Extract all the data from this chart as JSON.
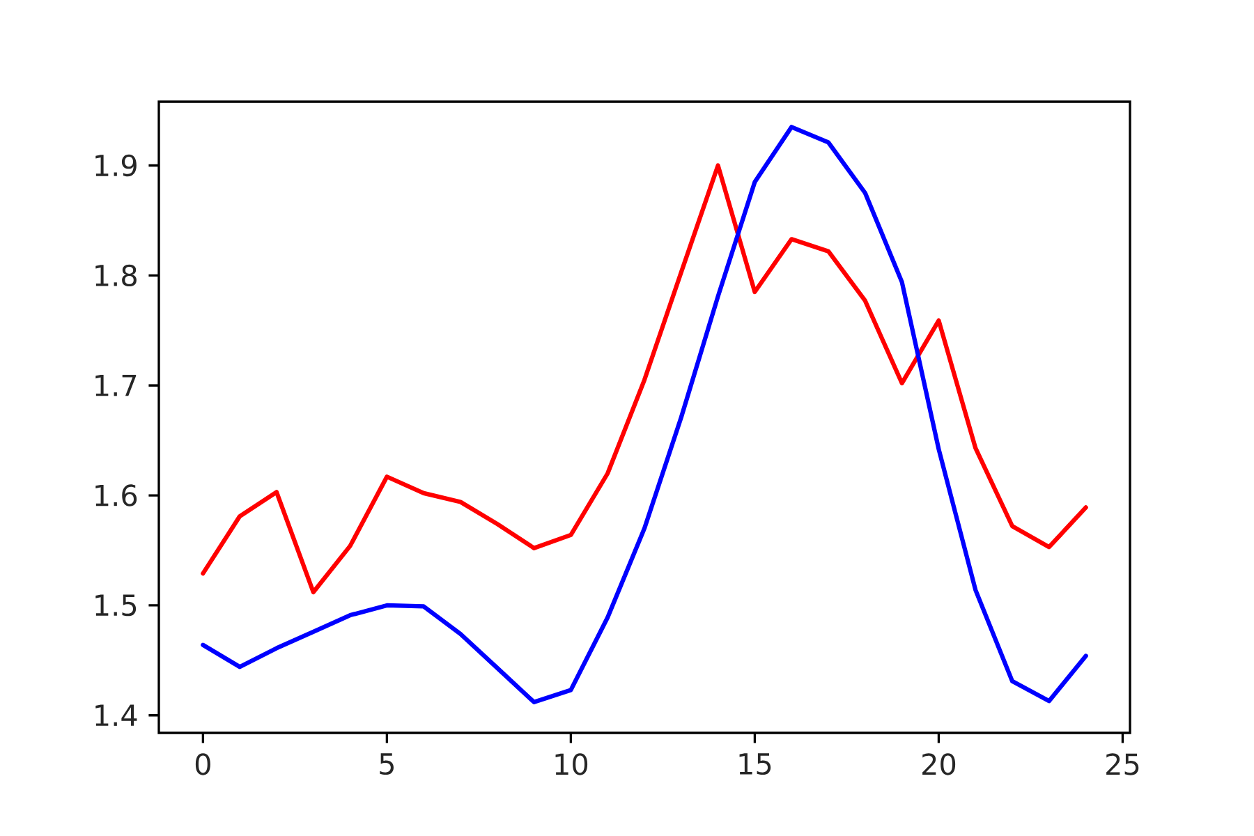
{
  "chart_data": {
    "type": "line",
    "x": [
      0,
      1,
      2,
      3,
      4,
      5,
      6,
      7,
      8,
      9,
      10,
      11,
      12,
      13,
      14,
      15,
      16,
      17,
      18,
      19,
      20,
      21,
      22,
      23,
      24
    ],
    "series": [
      {
        "color": "#ff0000",
        "values": [
          1.529,
          1.581,
          1.603,
          1.512,
          1.554,
          1.617,
          1.602,
          1.594,
          1.574,
          1.552,
          1.564,
          1.62,
          1.705,
          1.803,
          1.9,
          1.785,
          1.833,
          1.822,
          1.777,
          1.702,
          1.759,
          1.643,
          1.572,
          1.553,
          1.589
        ]
      },
      {
        "color": "#0000ff",
        "values": [
          1.464,
          1.444,
          1.461,
          1.476,
          1.491,
          1.5,
          1.499,
          1.474,
          1.443,
          1.412,
          1.423,
          1.489,
          1.57,
          1.671,
          1.781,
          1.885,
          1.935,
          1.921,
          1.875,
          1.794,
          1.642,
          1.514,
          1.431,
          1.413,
          1.454
        ]
      }
    ],
    "xlim": [
      -1.2,
      25.2
    ],
    "ylim": [
      1.384,
      1.958
    ],
    "xticks": [
      0,
      5,
      10,
      15,
      20,
      25
    ],
    "yticks": [
      1.4,
      1.5,
      1.6,
      1.7,
      1.8,
      1.9
    ]
  }
}
